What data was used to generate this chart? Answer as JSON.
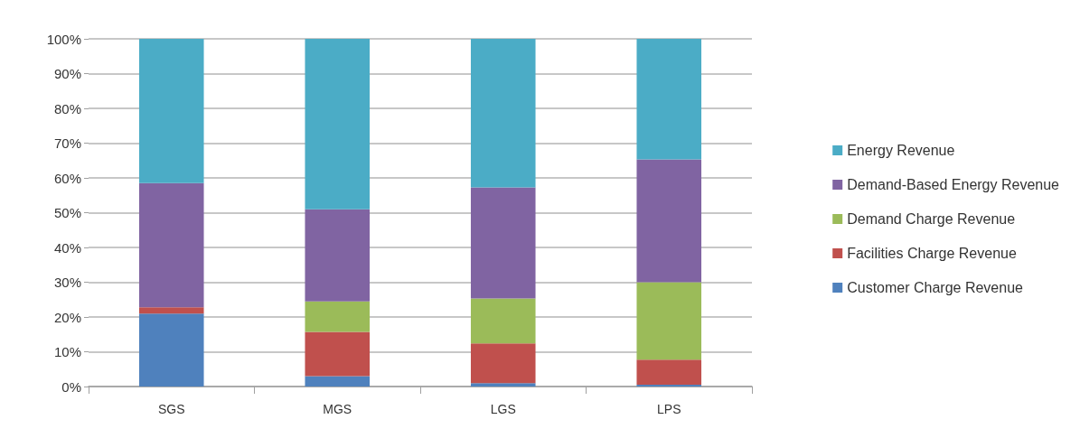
{
  "chart_data": {
    "type": "bar",
    "stacked": true,
    "categories": [
      "SGS",
      "MGS",
      "LGS",
      "LPS"
    ],
    "series": [
      {
        "name": "Customer Charge Revenue",
        "color": "#4f81bd",
        "values": [
          21,
          3,
          1,
          0.5
        ]
      },
      {
        "name": "Facilities Charge Revenue",
        "color": "#c0504d",
        "values": [
          1.8,
          12.7,
          11.4,
          7.2
        ]
      },
      {
        "name": "Demand Charge Revenue",
        "color": "#9bbb59",
        "values": [
          0,
          8.8,
          12.9,
          22.3
        ]
      },
      {
        "name": "Demand-Based Energy Revenue",
        "color": "#8064a2",
        "values": [
          35.7,
          26.5,
          32,
          35.3
        ]
      },
      {
        "name": "Energy Revenue",
        "color": "#4bacc6",
        "values": [
          41.5,
          49,
          42.7,
          34.7
        ]
      }
    ],
    "ylim": [
      0,
      100
    ],
    "yticks": [
      {
        "value": 0,
        "label": "0%"
      },
      {
        "value": 10,
        "label": "10%"
      },
      {
        "value": 20,
        "label": "20%"
      },
      {
        "value": 30,
        "label": "30%"
      },
      {
        "value": 40,
        "label": "40%"
      },
      {
        "value": 50,
        "label": "50%"
      },
      {
        "value": 60,
        "label": "60%"
      },
      {
        "value": 70,
        "label": "70%"
      },
      {
        "value": 80,
        "label": "80%"
      },
      {
        "value": 90,
        "label": "90%"
      },
      {
        "value": 100,
        "label": "100%"
      }
    ],
    "grid": "y",
    "legend": "right"
  }
}
